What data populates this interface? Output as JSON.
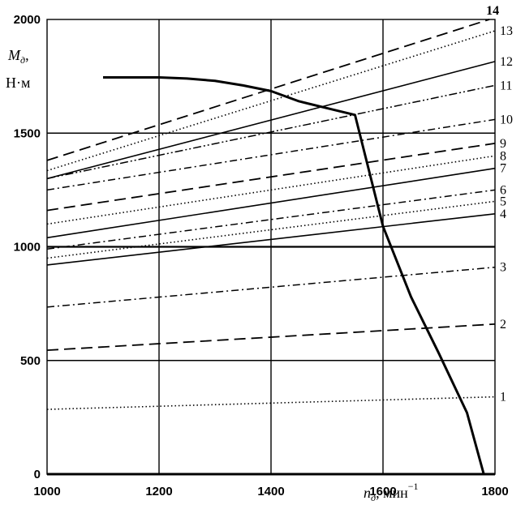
{
  "chart_data": {
    "type": "line",
    "title": "",
    "xlabel": {
      "symbol": "n",
      "subscript": "д",
      "unit_text": ", мин",
      "unit_power": "−1"
    },
    "ylabel": {
      "symbol": "M",
      "subscript": "д",
      "comma": ",",
      "unit_text": "Н·м"
    },
    "xlim": [
      1000,
      1800
    ],
    "ylim": [
      0,
      2000
    ],
    "xticks": [
      1000,
      1200,
      1400,
      1600,
      1800
    ],
    "yticks": [
      0,
      500,
      1000,
      1500,
      2000
    ],
    "grid": true,
    "lines": [
      {
        "label": "1",
        "style": "dotted",
        "x": [
          1000,
          1800
        ],
        "y": [
          285,
          340
        ]
      },
      {
        "label": "2",
        "style": "long-dash",
        "x": [
          1000,
          1800
        ],
        "y": [
          545,
          660
        ]
      },
      {
        "label": "3",
        "style": "dash-dot",
        "x": [
          1000,
          1800
        ],
        "y": [
          735,
          910
        ]
      },
      {
        "label": "4",
        "style": "solid",
        "x": [
          1000,
          1800
        ],
        "y": [
          920,
          1145
        ]
      },
      {
        "label": "5",
        "style": "dotted",
        "x": [
          1000,
          1800
        ],
        "y": [
          950,
          1200
        ]
      },
      {
        "label": "6",
        "style": "dash-dot",
        "x": [
          1000,
          1800
        ],
        "y": [
          990,
          1250
        ]
      },
      {
        "label": "7",
        "style": "solid",
        "x": [
          1000,
          1800
        ],
        "y": [
          1040,
          1345
        ]
      },
      {
        "label": "8",
        "style": "dotted",
        "x": [
          1000,
          1800
        ],
        "y": [
          1100,
          1400
        ]
      },
      {
        "label": "9",
        "style": "long-dash",
        "x": [
          1000,
          1800
        ],
        "y": [
          1160,
          1455
        ]
      },
      {
        "label": "10",
        "style": "dash-dot",
        "x": [
          1000,
          1800
        ],
        "y": [
          1250,
          1560
        ]
      },
      {
        "label": "11",
        "style": "dash-dot-dot",
        "x": [
          1000,
          1800
        ],
        "y": [
          1300,
          1710
        ]
      },
      {
        "label": "12",
        "style": "solid",
        "x": [
          1000,
          1800
        ],
        "y": [
          1300,
          1815
        ]
      },
      {
        "label": "13",
        "style": "dotted",
        "x": [
          1000,
          1800
        ],
        "y": [
          1335,
          1950
        ]
      },
      {
        "label": "14",
        "style": "long-dash",
        "x": [
          1000,
          1790
        ],
        "y": [
          1380,
          2000
        ]
      }
    ],
    "engine_curve": {
      "x": [
        1100,
        1200,
        1250,
        1300,
        1350,
        1400,
        1450,
        1500,
        1550,
        1600,
        1650,
        1700,
        1750,
        1780
      ],
      "y": [
        1745,
        1745,
        1740,
        1730,
        1710,
        1685,
        1640,
        1610,
        1580,
        1090,
        780,
        530,
        270,
        0
      ]
    }
  }
}
